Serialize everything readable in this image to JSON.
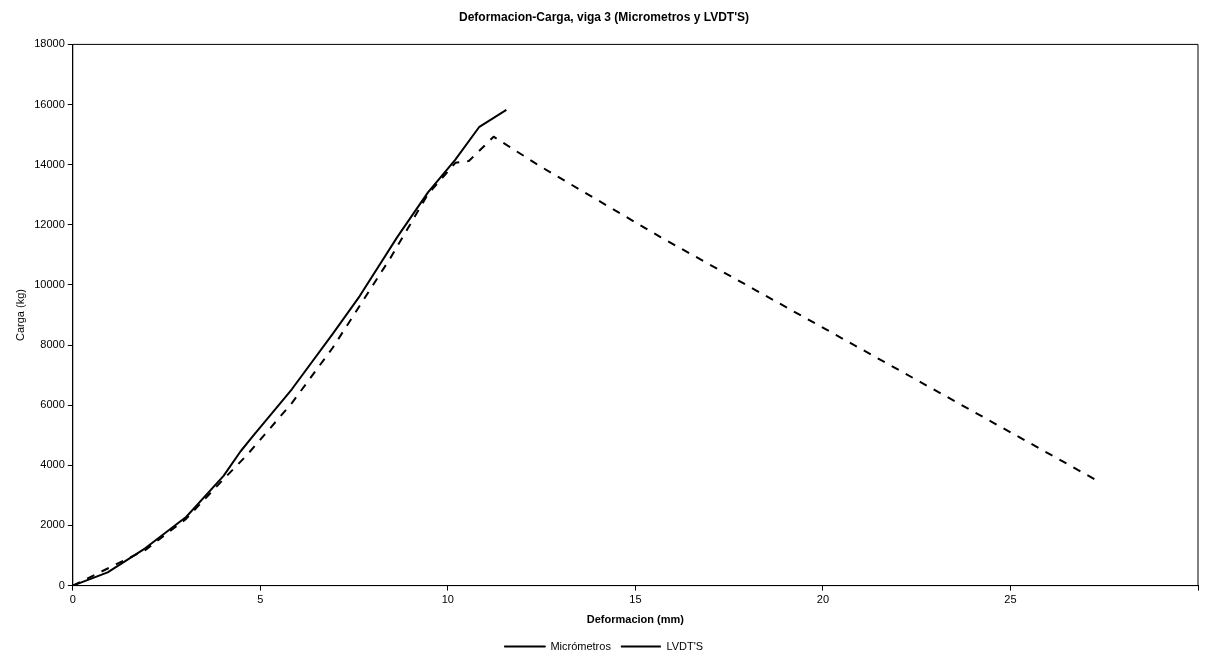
{
  "chart_data": {
    "type": "line",
    "title": "Deformacion-Carga, viga 3 (Micrometros y LVDT'S)",
    "xlabel": "Deformacion (mm)",
    "ylabel": "Carga (kg)",
    "xlim": [
      0,
      30
    ],
    "xticks": [
      0,
      5,
      10,
      15,
      20,
      25,
      {
        "value": 30,
        "label": null
      }
    ],
    "ylim": [
      0,
      18000
    ],
    "yticks": [
      0,
      2000,
      4000,
      6000,
      8000,
      10000,
      12000,
      14000,
      16000,
      18000
    ],
    "grid": false,
    "legend": "bottom",
    "marker": "none",
    "series": [
      {
        "name": "Micrómetros",
        "color": "#000000",
        "line_style": "solid",
        "x": [
          0,
          0.93,
          1.93,
          3.02,
          4.02,
          4.47,
          4.84,
          5.84,
          6.93,
          7.65,
          8.65,
          9.47,
          10.2,
          10.84,
          11.56
        ],
        "values": [
          0,
          440,
          1240,
          2280,
          3650,
          4460,
          5030,
          6530,
          8370,
          9630,
          11590,
          13080,
          14170,
          15260,
          15820
        ]
      },
      {
        "name": "LVDT'S",
        "color": "#000000",
        "line_style": "dashed",
        "x": [
          0,
          1.93,
          3.02,
          4.02,
          4.65,
          5.84,
          6.93,
          8.47,
          9.47,
          10.2,
          10.56,
          11.22,
          12.47,
          15.67,
          27.3
        ],
        "values": [
          0,
          1180,
          2220,
          3540,
          4350,
          6070,
          7910,
          10900,
          13020,
          14060,
          14120,
          14930,
          13940,
          11590,
          3500
        ]
      }
    ]
  }
}
